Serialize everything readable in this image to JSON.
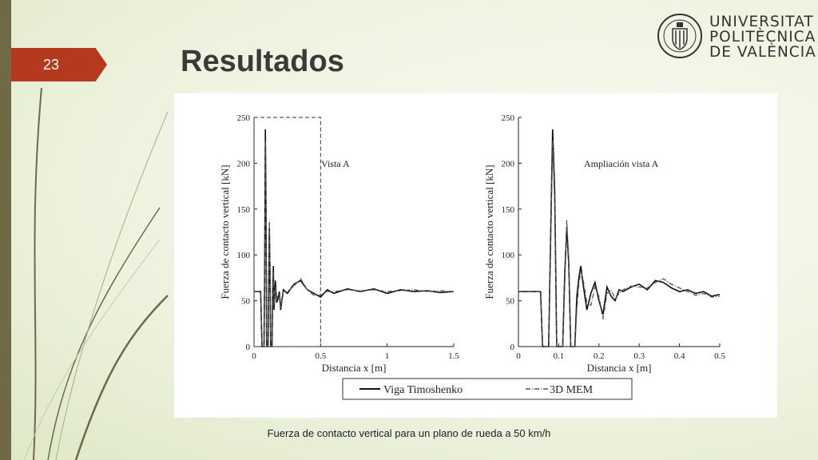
{
  "slide": {
    "number": "23",
    "title": "Resultados",
    "caption": "Fuerza de contacto vertical para un plano de rueda a 50 km/h"
  },
  "logo": {
    "line1": "UNIVERSITAT",
    "line2": "POLITÈCNICA",
    "line3": "DE VALÈNCIA",
    "seal_text_top": "UNIVERSITAT POLITÈCNICA",
    "seal_text_bottom": "VALÈNCIA"
  },
  "colors": {
    "accent": "#b5391f",
    "bar": "#6f6a45",
    "series_timoshenko": "#111111",
    "series_mem": "#555555"
  },
  "chart_data": [
    {
      "type": "line",
      "annotation": "Vista A",
      "xlabel": "Distancia x [m]",
      "ylabel": "Fuerza de contacto vertical [kN]",
      "xlim": [
        0,
        1.5
      ],
      "ylim": [
        0,
        250
      ],
      "xticks": [
        0,
        0.5,
        1,
        1.5
      ],
      "xtick_labels": [
        "0",
        "0.5",
        "1",
        "1.5"
      ],
      "yticks": [
        0,
        50,
        100,
        150,
        200,
        250
      ],
      "zoom_box": {
        "x": [
          0,
          0.5
        ],
        "y": [
          0,
          250
        ]
      },
      "series": [
        {
          "name": "Viga Timoshenko",
          "x": [
            0,
            0.05,
            0.06,
            0.065,
            0.07,
            0.075,
            0.08,
            0.085,
            0.09,
            0.095,
            0.1,
            0.105,
            0.11,
            0.115,
            0.12,
            0.125,
            0.13,
            0.135,
            0.14,
            0.145,
            0.15,
            0.16,
            0.17,
            0.18,
            0.19,
            0.2,
            0.22,
            0.25,
            0.3,
            0.35,
            0.4,
            0.45,
            0.5,
            0.55,
            0.6,
            0.7,
            0.8,
            0.9,
            1,
            1.1,
            1.2,
            1.3,
            1.4,
            1.5
          ],
          "y": [
            60,
            60,
            0,
            0,
            0,
            0,
            80,
            237,
            150,
            0,
            0,
            0,
            60,
            130,
            80,
            0,
            0,
            0,
            60,
            88,
            40,
            72,
            48,
            52,
            60,
            40,
            62,
            58,
            68,
            72,
            62,
            58,
            54,
            62,
            58,
            63,
            60,
            63,
            58,
            62,
            60,
            61,
            59,
            60
          ]
        },
        {
          "name": "3D MEM",
          "x": [
            0,
            0.05,
            0.06,
            0.065,
            0.07,
            0.075,
            0.08,
            0.085,
            0.09,
            0.095,
            0.1,
            0.105,
            0.11,
            0.115,
            0.12,
            0.125,
            0.13,
            0.135,
            0.14,
            0.145,
            0.15,
            0.16,
            0.17,
            0.18,
            0.19,
            0.2,
            0.22,
            0.25,
            0.3,
            0.35,
            0.4,
            0.45,
            0.5,
            0.55,
            0.6,
            0.7,
            0.8,
            0.9,
            1,
            1.1,
            1.2,
            1.3,
            1.4,
            1.5
          ],
          "y": [
            60,
            60,
            0,
            0,
            0,
            0,
            70,
            225,
            140,
            0,
            0,
            0,
            55,
            138,
            88,
            0,
            0,
            0,
            55,
            82,
            45,
            65,
            52,
            55,
            58,
            42,
            60,
            60,
            66,
            74,
            62,
            56,
            56,
            60,
            60,
            62,
            61,
            62,
            60,
            61,
            62,
            60,
            61,
            60
          ]
        }
      ]
    },
    {
      "type": "line",
      "annotation": "Ampliación vista A",
      "xlabel": "Distancia x [m]",
      "ylabel": "Fuerza de contacto vertical [kN]",
      "xlim": [
        0,
        0.5
      ],
      "ylim": [
        0,
        250
      ],
      "xticks": [
        0,
        0.1,
        0.2,
        0.3,
        0.4,
        0.5
      ],
      "xtick_labels": [
        "0",
        "0.1",
        "0.2",
        "0.3",
        "0.4",
        "0.5"
      ],
      "yticks": [
        0,
        50,
        100,
        150,
        200,
        250
      ],
      "series": [
        {
          "name": "Viga Timoshenko",
          "x": [
            0,
            0.055,
            0.06,
            0.07,
            0.075,
            0.08,
            0.085,
            0.09,
            0.095,
            0.1,
            0.105,
            0.11,
            0.115,
            0.12,
            0.125,
            0.13,
            0.135,
            0.14,
            0.145,
            0.15,
            0.155,
            0.16,
            0.17,
            0.18,
            0.19,
            0.2,
            0.21,
            0.22,
            0.23,
            0.24,
            0.25,
            0.26,
            0.28,
            0.3,
            0.32,
            0.34,
            0.36,
            0.38,
            0.4,
            0.42,
            0.44,
            0.46,
            0.48,
            0.5
          ],
          "y": [
            60,
            60,
            0,
            0,
            0,
            120,
            237,
            170,
            0,
            0,
            0,
            0,
            80,
            130,
            90,
            0,
            0,
            0,
            55,
            75,
            88,
            70,
            40,
            58,
            70,
            50,
            35,
            65,
            55,
            50,
            62,
            60,
            65,
            68,
            62,
            72,
            70,
            64,
            60,
            62,
            58,
            60,
            55,
            57
          ]
        },
        {
          "name": "3D MEM",
          "x": [
            0,
            0.055,
            0.06,
            0.07,
            0.075,
            0.08,
            0.085,
            0.09,
            0.095,
            0.1,
            0.105,
            0.11,
            0.115,
            0.12,
            0.125,
            0.13,
            0.135,
            0.14,
            0.145,
            0.15,
            0.155,
            0.16,
            0.17,
            0.18,
            0.19,
            0.2,
            0.21,
            0.22,
            0.23,
            0.24,
            0.25,
            0.26,
            0.28,
            0.3,
            0.32,
            0.34,
            0.36,
            0.38,
            0.4,
            0.42,
            0.44,
            0.46,
            0.48,
            0.5
          ],
          "y": [
            60,
            60,
            0,
            0,
            0,
            110,
            225,
            160,
            0,
            0,
            0,
            0,
            70,
            138,
            95,
            0,
            0,
            0,
            40,
            68,
            82,
            75,
            48,
            45,
            65,
            55,
            30,
            58,
            62,
            52,
            58,
            62,
            66,
            65,
            64,
            70,
            74,
            68,
            64,
            60,
            56,
            58,
            54,
            55
          ]
        }
      ]
    }
  ],
  "legend": [
    {
      "name": "Viga Timoshenko",
      "style": "solid"
    },
    {
      "name": "3D MEM",
      "style": "dash-dot"
    }
  ]
}
